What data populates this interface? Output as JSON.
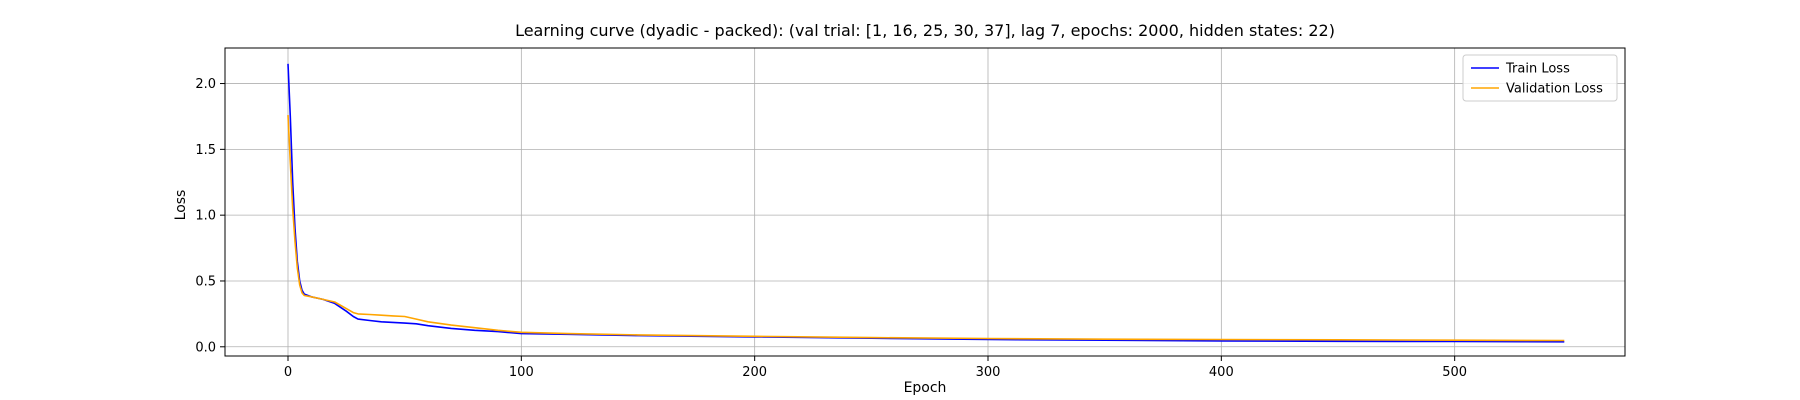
{
  "chart_data": {
    "type": "line",
    "title": "Learning curve (dyadic - packed): (val trial: [1, 16, 25, 30, 37], lag 7, epochs: 2000, hidden states: 22)",
    "xlabel": "Epoch",
    "ylabel": "Loss",
    "xlim": [
      -27,
      573
    ],
    "ylim": [
      -0.07,
      2.27
    ],
    "xticks": [
      0,
      100,
      200,
      300,
      400,
      500
    ],
    "yticks": [
      0.0,
      0.5,
      1.0,
      1.5,
      2.0
    ],
    "xtick_labels": [
      "0",
      "100",
      "200",
      "300",
      "400",
      "500"
    ],
    "ytick_labels": [
      "0.0",
      "0.5",
      "1.0",
      "1.5",
      "2.0"
    ],
    "grid": true,
    "legend_position": "top-right",
    "series": [
      {
        "name": "Train Loss",
        "color": "#0000ff",
        "points": [
          [
            0,
            2.15
          ],
          [
            1,
            1.75
          ],
          [
            2,
            1.25
          ],
          [
            3,
            0.9
          ],
          [
            4,
            0.65
          ],
          [
            5,
            0.5
          ],
          [
            6,
            0.43
          ],
          [
            7,
            0.4
          ],
          [
            10,
            0.38
          ],
          [
            15,
            0.36
          ],
          [
            20,
            0.33
          ],
          [
            25,
            0.27
          ],
          [
            28,
            0.23
          ],
          [
            30,
            0.21
          ],
          [
            35,
            0.2
          ],
          [
            40,
            0.19
          ],
          [
            45,
            0.185
          ],
          [
            50,
            0.18
          ],
          [
            55,
            0.175
          ],
          [
            60,
            0.16
          ],
          [
            70,
            0.14
          ],
          [
            80,
            0.125
          ],
          [
            90,
            0.115
          ],
          [
            100,
            0.1
          ],
          [
            120,
            0.095
          ],
          [
            150,
            0.085
          ],
          [
            200,
            0.075
          ],
          [
            250,
            0.065
          ],
          [
            300,
            0.055
          ],
          [
            350,
            0.05
          ],
          [
            400,
            0.045
          ],
          [
            450,
            0.042
          ],
          [
            500,
            0.04
          ],
          [
            547,
            0.038
          ]
        ]
      },
      {
        "name": "Validation Loss",
        "color": "#ffa500",
        "points": [
          [
            0,
            1.76
          ],
          [
            1,
            1.4
          ],
          [
            2,
            1.05
          ],
          [
            3,
            0.8
          ],
          [
            4,
            0.6
          ],
          [
            5,
            0.47
          ],
          [
            6,
            0.41
          ],
          [
            7,
            0.39
          ],
          [
            10,
            0.38
          ],
          [
            15,
            0.36
          ],
          [
            20,
            0.34
          ],
          [
            25,
            0.29
          ],
          [
            28,
            0.26
          ],
          [
            30,
            0.25
          ],
          [
            35,
            0.245
          ],
          [
            40,
            0.24
          ],
          [
            45,
            0.235
          ],
          [
            50,
            0.23
          ],
          [
            55,
            0.21
          ],
          [
            60,
            0.19
          ],
          [
            70,
            0.165
          ],
          [
            80,
            0.145
          ],
          [
            90,
            0.125
          ],
          [
            100,
            0.11
          ],
          [
            120,
            0.1
          ],
          [
            150,
            0.09
          ],
          [
            200,
            0.08
          ],
          [
            250,
            0.07
          ],
          [
            300,
            0.063
          ],
          [
            350,
            0.058
          ],
          [
            400,
            0.055
          ],
          [
            450,
            0.053
          ],
          [
            500,
            0.05
          ],
          [
            547,
            0.048
          ]
        ]
      }
    ]
  }
}
